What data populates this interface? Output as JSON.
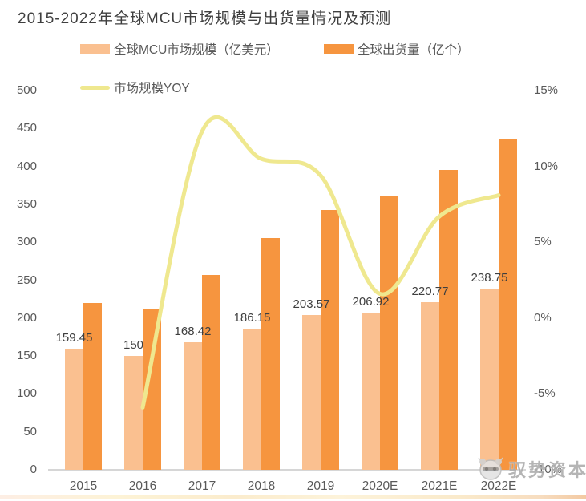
{
  "title": "2015-2022年全球MCU市场规模与出货量情况及预测",
  "legend": {
    "market_size": "全球MCU市场规模（亿美元）",
    "shipments": "全球出货量（亿个）",
    "yoy": "市场规模YOY"
  },
  "watermark": {
    "text": "驭势资本",
    "icon": "panda-logo-icon"
  },
  "colors": {
    "market_size_bar": "#FAC090",
    "shipments_bar": "#F6953F",
    "yoy_line": "#EFE88F",
    "axis_text": "#595959",
    "data_label_text": "#3f3f3f",
    "title_text": "#3f3f3f",
    "baseline": "#d6d6d6"
  },
  "chart_data": {
    "type": "bar",
    "title": "2015-2022年全球MCU市场规模与出货量情况及预测",
    "categories": [
      "2015",
      "2016",
      "2017",
      "2018",
      "2019",
      "2020E",
      "2021E",
      "2022E"
    ],
    "series": [
      {
        "name": "全球MCU市场规模（亿美元）",
        "type": "bar",
        "axis": "left",
        "color": "#FAC090",
        "values": [
          159.45,
          150,
          168.42,
          186.15,
          203.57,
          206.92,
          220.77,
          238.75
        ],
        "data_labels": [
          "159.45",
          "150",
          "168.42",
          "186.15",
          "203.57",
          "206.92",
          "220.77",
          "238.75"
        ]
      },
      {
        "name": "全球出货量（亿个）",
        "type": "bar",
        "axis": "left",
        "color": "#F6953F",
        "values": [
          220,
          211,
          257,
          305,
          342,
          360,
          395,
          437
        ]
      },
      {
        "name": "市场规模YOY",
        "type": "line",
        "axis": "right",
        "color": "#EFE88F",
        "values": [
          null,
          -5.9,
          12.3,
          10.5,
          9.4,
          1.6,
          6.7,
          8.1
        ]
      }
    ],
    "left_axis": {
      "min": 0,
      "max": 500,
      "step": 50,
      "tick_labels": [
        "0",
        "50",
        "100",
        "150",
        "200",
        "250",
        "300",
        "350",
        "400",
        "450",
        "500"
      ]
    },
    "right_axis": {
      "min": -10,
      "max": 15,
      "step": 5,
      "tick_labels": [
        "-10%",
        "-5%",
        "0%",
        "5%",
        "10%",
        "15%"
      ]
    },
    "grid": false,
    "legend_position": "top-left"
  }
}
